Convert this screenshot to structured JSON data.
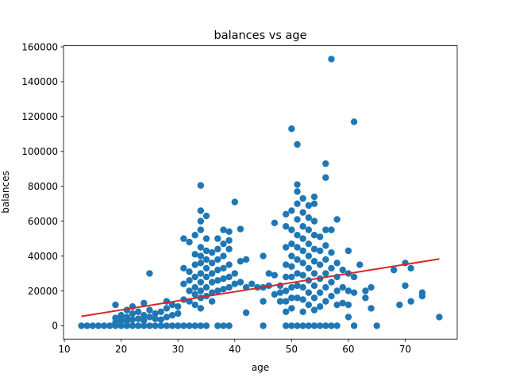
{
  "chart_data": {
    "type": "scatter",
    "title": "balances vs age",
    "xlabel": "age",
    "ylabel": "balances",
    "xlim": [
      9.85,
      79.15
    ],
    "ylim": [
      -7650,
      160650
    ],
    "xticks": [
      10,
      20,
      30,
      40,
      50,
      60,
      70
    ],
    "yticks": [
      0,
      20000,
      40000,
      60000,
      80000,
      100000,
      120000,
      140000,
      160000
    ],
    "grid": false,
    "legend": "none",
    "colors": {
      "points": "#1f77b4",
      "fit_line": "#d62728"
    },
    "series": [
      {
        "kind": "scatter",
        "points": [
          [
            13,
            0
          ],
          [
            14,
            0
          ],
          [
            15,
            0
          ],
          [
            16,
            0
          ],
          [
            17,
            0
          ],
          [
            18,
            0
          ],
          [
            19,
            0
          ],
          [
            20,
            0
          ],
          [
            21,
            0
          ],
          [
            22,
            0
          ],
          [
            23,
            0
          ],
          [
            24,
            0
          ],
          [
            25,
            0
          ],
          [
            26,
            0
          ],
          [
            27,
            0
          ],
          [
            28,
            0
          ],
          [
            29,
            0
          ],
          [
            30,
            0
          ],
          [
            19,
            2000
          ],
          [
            19,
            4500
          ],
          [
            19,
            12000
          ],
          [
            20,
            3000
          ],
          [
            20,
            6000
          ],
          [
            21,
            2500
          ],
          [
            21,
            5000
          ],
          [
            21,
            9000
          ],
          [
            22,
            3500
          ],
          [
            22,
            7000
          ],
          [
            22,
            11000
          ],
          [
            23,
            4000
          ],
          [
            23,
            8000
          ],
          [
            24,
            3000
          ],
          [
            24,
            6000
          ],
          [
            24,
            13000
          ],
          [
            25,
            5000
          ],
          [
            25,
            9000
          ],
          [
            25,
            30000
          ],
          [
            26,
            4000
          ],
          [
            26,
            7000
          ],
          [
            27,
            3500
          ],
          [
            27,
            8000
          ],
          [
            28,
            5000
          ],
          [
            28,
            10000
          ],
          [
            29,
            6000
          ],
          [
            29,
            12000
          ],
          [
            30,
            7000
          ],
          [
            30,
            11000
          ],
          [
            28,
            14000
          ],
          [
            31,
            15000
          ],
          [
            31,
            24000
          ],
          [
            31,
            33000
          ],
          [
            31,
            50000
          ],
          [
            32,
            14000
          ],
          [
            32,
            20000
          ],
          [
            32,
            26000
          ],
          [
            32,
            31000
          ],
          [
            32,
            48000
          ],
          [
            33,
            12000
          ],
          [
            33,
            18000
          ],
          [
            33,
            22000
          ],
          [
            33,
            28000
          ],
          [
            33,
            35000
          ],
          [
            33,
            41000
          ],
          [
            33,
            52000
          ],
          [
            34,
            80500
          ],
          [
            34,
            66000
          ],
          [
            34,
            60000
          ],
          [
            34,
            55000
          ],
          [
            34,
            45000
          ],
          [
            34,
            40000
          ],
          [
            34,
            36000
          ],
          [
            34,
            30000
          ],
          [
            34,
            25000
          ],
          [
            34,
            20000
          ],
          [
            34,
            16000
          ],
          [
            34,
            10000
          ],
          [
            35,
            63000
          ],
          [
            35,
            50000
          ],
          [
            35,
            43000
          ],
          [
            35,
            38000
          ],
          [
            35,
            33000
          ],
          [
            35,
            28000
          ],
          [
            35,
            22000
          ],
          [
            35,
            17000
          ],
          [
            36,
            42000
          ],
          [
            36,
            36000
          ],
          [
            36,
            30000
          ],
          [
            36,
            25000
          ],
          [
            36,
            19000
          ],
          [
            36,
            14000
          ],
          [
            37,
            50000
          ],
          [
            37,
            44000
          ],
          [
            37,
            38000
          ],
          [
            37,
            32000
          ],
          [
            37,
            26000
          ],
          [
            37,
            20000
          ],
          [
            38,
            55000
          ],
          [
            38,
            47000
          ],
          [
            38,
            40000
          ],
          [
            38,
            33000
          ],
          [
            38,
            27000
          ],
          [
            38,
            21000
          ],
          [
            39,
            54000
          ],
          [
            39,
            44000
          ],
          [
            39,
            35000
          ],
          [
            39,
            28000
          ],
          [
            39,
            22000
          ],
          [
            39,
            49000
          ],
          [
            40,
            71000
          ],
          [
            40,
            30000
          ],
          [
            40,
            24000
          ],
          [
            41,
            55500
          ],
          [
            41,
            37000
          ],
          [
            41,
            25000
          ],
          [
            42,
            38000
          ],
          [
            42,
            22000
          ],
          [
            42,
            7500
          ],
          [
            43,
            24000
          ],
          [
            44,
            22000
          ],
          [
            31,
            0
          ],
          [
            32,
            0
          ],
          [
            33,
            0
          ],
          [
            34,
            0
          ],
          [
            35,
            0
          ],
          [
            37,
            0
          ],
          [
            38,
            0
          ],
          [
            39,
            0
          ],
          [
            45,
            0
          ],
          [
            45,
            40000
          ],
          [
            45,
            22000
          ],
          [
            45,
            14000
          ],
          [
            46,
            30000
          ],
          [
            46,
            23000
          ],
          [
            47,
            59000
          ],
          [
            47,
            29000
          ],
          [
            47,
            18000
          ],
          [
            48,
            19000
          ],
          [
            48,
            14000
          ],
          [
            48,
            23000
          ],
          [
            49,
            64000
          ],
          [
            49,
            57000
          ],
          [
            49,
            45000
          ],
          [
            49,
            35000
          ],
          [
            49,
            28000
          ],
          [
            49,
            20000
          ],
          [
            49,
            14000
          ],
          [
            49,
            8000
          ],
          [
            49,
            0
          ],
          [
            50,
            113000
          ],
          [
            50,
            66000
          ],
          [
            50,
            55000
          ],
          [
            50,
            47000
          ],
          [
            50,
            40000
          ],
          [
            50,
            34000
          ],
          [
            50,
            28000
          ],
          [
            50,
            22000
          ],
          [
            50,
            16000
          ],
          [
            50,
            10000
          ],
          [
            50,
            0
          ],
          [
            51,
            104000
          ],
          [
            51,
            81000
          ],
          [
            51,
            77000
          ],
          [
            51,
            70000
          ],
          [
            51,
            61000
          ],
          [
            51,
            52000
          ],
          [
            51,
            45000
          ],
          [
            51,
            38000
          ],
          [
            51,
            30000
          ],
          [
            51,
            23000
          ],
          [
            51,
            16000
          ],
          [
            51,
            0
          ],
          [
            52,
            73000
          ],
          [
            52,
            65000
          ],
          [
            52,
            57000
          ],
          [
            52,
            50000
          ],
          [
            52,
            43000
          ],
          [
            52,
            36000
          ],
          [
            52,
            29000
          ],
          [
            52,
            22000
          ],
          [
            52,
            15000
          ],
          [
            52,
            8000
          ],
          [
            52,
            0
          ],
          [
            53,
            69000
          ],
          [
            53,
            62000
          ],
          [
            53,
            55000
          ],
          [
            53,
            47000
          ],
          [
            53,
            40000
          ],
          [
            53,
            33000
          ],
          [
            53,
            26000
          ],
          [
            53,
            19000
          ],
          [
            53,
            12000
          ],
          [
            53,
            0
          ],
          [
            54,
            74000
          ],
          [
            54,
            70000
          ],
          [
            54,
            60000
          ],
          [
            54,
            52000
          ],
          [
            54,
            44000
          ],
          [
            54,
            37000
          ],
          [
            54,
            30000
          ],
          [
            54,
            23000
          ],
          [
            54,
            16000
          ],
          [
            54,
            9000
          ],
          [
            54,
            0
          ],
          [
            55,
            51000
          ],
          [
            55,
            43000
          ],
          [
            55,
            35000
          ],
          [
            55,
            27000
          ],
          [
            55,
            19000
          ],
          [
            55,
            11000
          ],
          [
            55,
            0
          ],
          [
            56,
            93000
          ],
          [
            56,
            85000
          ],
          [
            56,
            55000
          ],
          [
            56,
            46000
          ],
          [
            56,
            38000
          ],
          [
            56,
            30000
          ],
          [
            56,
            22000
          ],
          [
            56,
            14000
          ],
          [
            56,
            0
          ],
          [
            57,
            153000
          ],
          [
            57,
            55000
          ],
          [
            57,
            42000
          ],
          [
            57,
            33000
          ],
          [
            57,
            25000
          ],
          [
            57,
            17000
          ],
          [
            57,
            0
          ],
          [
            58,
            61000
          ],
          [
            58,
            36000
          ],
          [
            58,
            28000
          ],
          [
            58,
            20000
          ],
          [
            58,
            12000
          ],
          [
            58,
            0
          ],
          [
            59,
            32000
          ],
          [
            59,
            22000
          ],
          [
            59,
            13000
          ],
          [
            60,
            43000
          ],
          [
            60,
            30000
          ],
          [
            60,
            20000
          ],
          [
            60,
            12000
          ],
          [
            60,
            5000
          ],
          [
            61,
            117000
          ],
          [
            61,
            28000
          ],
          [
            61,
            19000
          ],
          [
            61,
            0
          ],
          [
            62,
            35000
          ],
          [
            63,
            20000
          ],
          [
            63,
            16000
          ],
          [
            64,
            22000
          ],
          [
            64,
            10000
          ],
          [
            65,
            0
          ],
          [
            68,
            32000
          ],
          [
            69,
            12000
          ],
          [
            70,
            36000
          ],
          [
            70,
            23000
          ],
          [
            71,
            33000
          ],
          [
            71,
            14000
          ],
          [
            73,
            19000
          ],
          [
            73,
            17000
          ],
          [
            76,
            5000
          ]
        ]
      },
      {
        "kind": "line",
        "x": [
          13,
          76
        ],
        "y": [
          5400,
          38300
        ]
      }
    ]
  }
}
